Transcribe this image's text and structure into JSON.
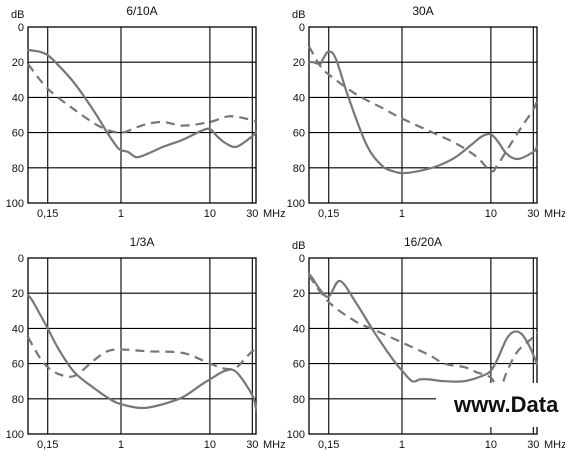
{
  "watermark": "www.Data",
  "chart_data": [
    {
      "type": "line",
      "title": "6/10A",
      "ylabel": "dB",
      "xunit": "MHz",
      "xscale": "log",
      "yinverted": true,
      "xlim": [
        0.09,
        33
      ],
      "ylim": [
        0,
        100
      ],
      "yticks": [
        0,
        20,
        40,
        60,
        80,
        100
      ],
      "xticks": [
        0.15,
        1,
        10,
        30
      ],
      "xtick_labels": [
        "0,15",
        "1",
        "10",
        "30"
      ],
      "grid": true,
      "series": [
        {
          "style": "solid",
          "x": [
            0.09,
            0.12,
            0.15,
            0.2,
            0.3,
            0.5,
            0.7,
            0.9,
            1.0,
            1.2,
            1.5,
            2,
            3,
            5,
            8,
            10,
            12,
            15,
            20,
            30,
            33
          ],
          "y": [
            13,
            14,
            16,
            22,
            32,
            48,
            60,
            68,
            70,
            71,
            74,
            72,
            68,
            64,
            59,
            58,
            62,
            66,
            68,
            62,
            60
          ]
        },
        {
          "style": "dashed",
          "x": [
            0.09,
            0.15,
            0.3,
            0.6,
            1.0,
            1.5,
            2,
            3,
            5,
            10,
            15,
            20,
            30,
            33
          ],
          "y": [
            21,
            35,
            47,
            57,
            60,
            57,
            55,
            54,
            56,
            54,
            51,
            51,
            53,
            54
          ]
        }
      ]
    },
    {
      "type": "line",
      "title": "30A",
      "ylabel": "dB",
      "xunit": "MHz",
      "xscale": "log",
      "yinverted": true,
      "xlim": [
        0.09,
        33
      ],
      "ylim": [
        0,
        100
      ],
      "yticks": [
        0,
        20,
        40,
        60,
        80,
        100
      ],
      "xticks": [
        0.15,
        1,
        10,
        30
      ],
      "xtick_labels": [
        "0,15",
        "1",
        "10",
        "30"
      ],
      "grid": true,
      "series": [
        {
          "style": "solid",
          "x": [
            0.09,
            0.1,
            0.12,
            0.13,
            0.15,
            0.18,
            0.25,
            0.4,
            0.6,
            0.8,
            1.0,
            1.5,
            2.5,
            4,
            6,
            8,
            10,
            12,
            15,
            20,
            30,
            33
          ],
          "y": [
            20,
            20,
            21,
            18,
            14,
            18,
            40,
            67,
            79,
            82,
            83,
            82,
            79,
            74,
            67,
            62,
            61,
            65,
            72,
            75,
            71,
            68
          ]
        },
        {
          "style": "dashed",
          "x": [
            0.09,
            0.12,
            0.15,
            0.3,
            0.6,
            1.0,
            2,
            4,
            7,
            10,
            12,
            16,
            22,
            30,
            33
          ],
          "y": [
            11,
            22,
            27,
            38,
            46,
            52,
            59,
            66,
            74,
            82,
            78,
            68,
            57,
            47,
            42
          ]
        }
      ]
    },
    {
      "type": "line",
      "title": "1/3A",
      "ylabel": "",
      "xunit": "MHz",
      "xscale": "log",
      "yinverted": true,
      "xlim": [
        0.09,
        33
      ],
      "ylim": [
        0,
        100
      ],
      "yticks": [
        0,
        20,
        40,
        60,
        80,
        100
      ],
      "xticks": [
        0.15,
        1,
        10,
        30
      ],
      "xtick_labels": [
        "0,15",
        "1",
        "10",
        "30"
      ],
      "grid": true,
      "series": [
        {
          "style": "solid",
          "x": [
            0.09,
            0.1,
            0.12,
            0.15,
            0.2,
            0.3,
            0.5,
            0.8,
            1.0,
            1.5,
            2,
            3,
            5,
            8,
            10,
            15,
            20,
            30,
            33
          ],
          "y": [
            21,
            24,
            31,
            40,
            52,
            65,
            74,
            81,
            83,
            85,
            85,
            83,
            79,
            72,
            69,
            64,
            65,
            78,
            86
          ]
        },
        {
          "style": "dashed",
          "x": [
            0.09,
            0.12,
            0.15,
            0.2,
            0.3,
            0.5,
            0.7,
            1.0,
            2,
            5,
            10,
            15,
            20,
            25,
            30,
            33
          ],
          "y": [
            45,
            56,
            62,
            66,
            67,
            58,
            53,
            52,
            53,
            54,
            60,
            63,
            62,
            57,
            53,
            53
          ]
        }
      ]
    },
    {
      "type": "line",
      "title": "16/20A",
      "ylabel": "dB",
      "xunit": "MHz",
      "xscale": "log",
      "yinverted": true,
      "xlim": [
        0.09,
        33
      ],
      "ylim": [
        0,
        100
      ],
      "yticks": [
        0,
        20,
        40,
        60,
        80,
        100
      ],
      "xticks": [
        0.15,
        1,
        10,
        30
      ],
      "xtick_labels": [
        "0,15",
        "1",
        "10",
        "30"
      ],
      "grid": true,
      "series": [
        {
          "style": "solid",
          "x": [
            0.09,
            0.1,
            0.12,
            0.15,
            0.2,
            0.3,
            0.5,
            0.8,
            1.0,
            1.3,
            1.6,
            2,
            3,
            5,
            8,
            10,
            12,
            15,
            18,
            22,
            27,
            33
          ],
          "y": [
            9,
            12,
            18,
            22,
            13,
            25,
            43,
            58,
            64,
            70,
            69,
            69,
            70,
            70,
            67,
            64,
            57,
            46,
            42,
            43,
            50,
            60
          ]
        },
        {
          "style": "dashed",
          "x": [
            0.09,
            0.15,
            0.3,
            0.5,
            1.0,
            2,
            3,
            5,
            7,
            10,
            12,
            13,
            15,
            20,
            30,
            33
          ],
          "y": [
            10,
            25,
            36,
            41,
            48,
            55,
            60,
            62,
            65,
            68,
            75,
            74,
            65,
            53,
            45,
            42
          ]
        }
      ]
    }
  ]
}
